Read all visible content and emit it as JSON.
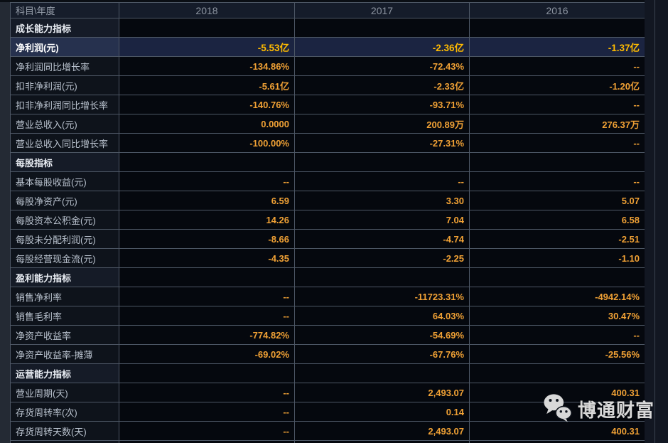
{
  "table": {
    "corner_label": "科目\\年度",
    "years": [
      "2018",
      "2017",
      "2016"
    ],
    "rows": [
      {
        "type": "section",
        "label": "成长能力指标"
      },
      {
        "type": "data",
        "label": "净利润(元)",
        "values": [
          "-5.53亿",
          "-2.36亿",
          "-1.37亿"
        ],
        "highlight": true
      },
      {
        "type": "data",
        "label": "净利润同比增长率",
        "values": [
          "-134.86%",
          "-72.43%",
          "--"
        ]
      },
      {
        "type": "data",
        "label": "扣非净利润(元)",
        "values": [
          "-5.61亿",
          "-2.33亿",
          "-1.20亿"
        ]
      },
      {
        "type": "data",
        "label": "扣非净利润同比增长率",
        "values": [
          "-140.76%",
          "-93.71%",
          "--"
        ]
      },
      {
        "type": "data",
        "label": "营业总收入(元)",
        "values": [
          "0.0000",
          "200.89万",
          "276.37万"
        ]
      },
      {
        "type": "data",
        "label": "营业总收入同比增长率",
        "values": [
          "-100.00%",
          "-27.31%",
          "--"
        ]
      },
      {
        "type": "section",
        "label": "每股指标"
      },
      {
        "type": "data",
        "label": "基本每股收益(元)",
        "values": [
          "--",
          "--",
          "--"
        ]
      },
      {
        "type": "data",
        "label": "每股净资产(元)",
        "values": [
          "6.59",
          "3.30",
          "5.07"
        ]
      },
      {
        "type": "data",
        "label": "每股资本公积金(元)",
        "values": [
          "14.26",
          "7.04",
          "6.58"
        ]
      },
      {
        "type": "data",
        "label": "每股未分配利润(元)",
        "values": [
          "-8.66",
          "-4.74",
          "-2.51"
        ]
      },
      {
        "type": "data",
        "label": "每股经营现金流(元)",
        "values": [
          "-4.35",
          "-2.25",
          "-1.10"
        ]
      },
      {
        "type": "section",
        "label": "盈利能力指标"
      },
      {
        "type": "data",
        "label": "销售净利率",
        "values": [
          "--",
          "-11723.31%",
          "-4942.14%"
        ]
      },
      {
        "type": "data",
        "label": "销售毛利率",
        "values": [
          "--",
          "64.03%",
          "30.47%"
        ]
      },
      {
        "type": "data",
        "label": "净资产收益率",
        "values": [
          "-774.82%",
          "-54.69%",
          "--"
        ]
      },
      {
        "type": "data",
        "label": "净资产收益率-摊薄",
        "values": [
          "-69.02%",
          "-67.76%",
          "-25.56%"
        ]
      },
      {
        "type": "section",
        "label": "运营能力指标"
      },
      {
        "type": "data",
        "label": "营业周期(天)",
        "values": [
          "--",
          "2,493.07",
          "400.31"
        ]
      },
      {
        "type": "data",
        "label": "存货周转率(次)",
        "values": [
          "--",
          "0.14",
          ""
        ]
      },
      {
        "type": "data",
        "label": "存货周转天数(天)",
        "values": [
          "--",
          "2,493.07",
          "400.31"
        ]
      }
    ]
  },
  "watermark": {
    "text": "博通财富",
    "icon": "wechat-icon"
  },
  "colors": {
    "value_orange": "#f0a135",
    "highlight_value_yellow": "#ffbb00",
    "highlight_row_bg": "#1b2441",
    "label_text": "#b9c2ce",
    "section_text": "#eaeef4",
    "header_text": "#8d95a1",
    "border": "#4d5765",
    "data_cell_bg": "#05080e",
    "label_cell_bg": "#0e131b"
  }
}
